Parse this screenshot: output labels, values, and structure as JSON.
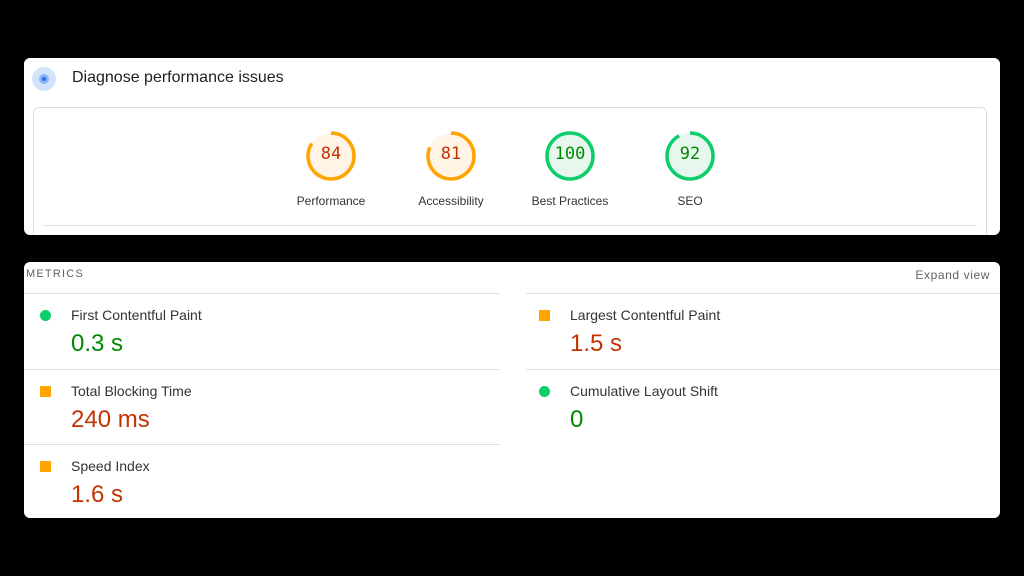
{
  "header": {
    "title": "Diagnose performance issues",
    "icon": "lighthouse-icon"
  },
  "scores": [
    {
      "label": "Performance",
      "score": 84,
      "rating": "average"
    },
    {
      "label": "Accessibility",
      "score": 81,
      "rating": "average"
    },
    {
      "label": "Best Practices",
      "score": 100,
      "rating": "pass"
    },
    {
      "label": "SEO",
      "score": 92,
      "rating": "pass"
    }
  ],
  "colors": {
    "pass": "#0cce6b",
    "pass_text": "#008800",
    "pass_bg": "#e8f7ee",
    "average": "#ffa400",
    "average_text": "#c33300",
    "average_bg": "#fff4e5"
  },
  "metrics": {
    "heading": "METRICS",
    "expand_label": "Expand view",
    "items": [
      {
        "name": "First Contentful Paint",
        "value": "0.3 s",
        "rating": "pass"
      },
      {
        "name": "Largest Contentful Paint",
        "value": "1.5 s",
        "rating": "average"
      },
      {
        "name": "Total Blocking Time",
        "value": "240 ms",
        "rating": "average"
      },
      {
        "name": "Cumulative Layout Shift",
        "value": "0",
        "rating": "pass"
      },
      {
        "name": "Speed Index",
        "value": "1.6 s",
        "rating": "average"
      }
    ]
  }
}
